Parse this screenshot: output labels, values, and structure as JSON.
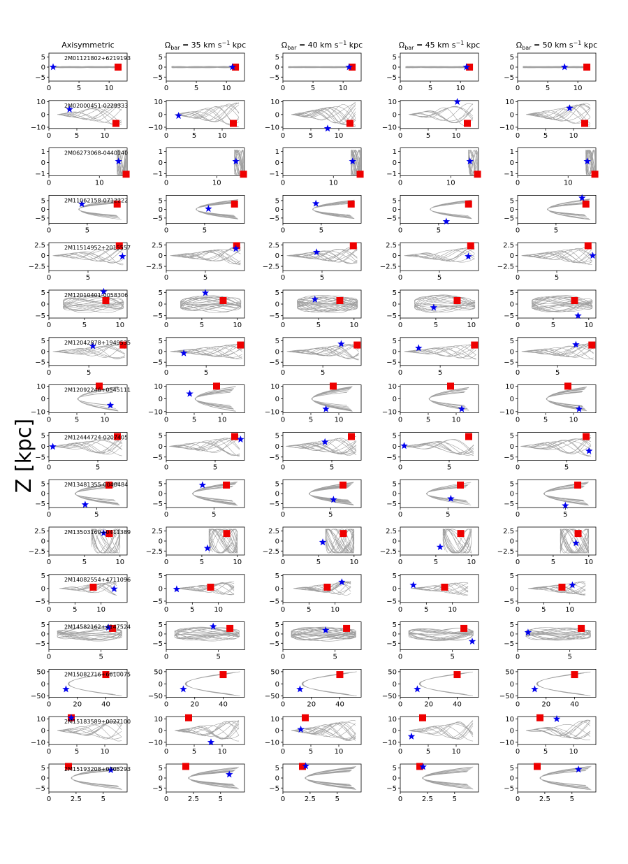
{
  "figure": {
    "ylabel": "Z [kpc]"
  },
  "chart_data": {
    "type": "line",
    "description_columns": [
      "Axisymmetric",
      "Ω_bar = 35 km s⁻¹ kpc",
      "Ω_bar = 40 km s⁻¹ kpc",
      "Ω_bar = 45 km s⁻¹ kpc",
      "Ω_bar = 50 km s⁻¹ kpc"
    ],
    "columns": [
      {
        "title": "Axisymmetric"
      },
      {
        "title_prefix": "Ω",
        "title_sub": "bar",
        "title_mid": " = 35 km s",
        "title_sup": "−1",
        "title_suffix": " kpc"
      },
      {
        "title_prefix": "Ω",
        "title_sub": "bar",
        "title_mid": " = 40 km s",
        "title_sup": "−1",
        "title_suffix": " kpc"
      },
      {
        "title_prefix": "Ω",
        "title_sub": "bar",
        "title_mid": " = 45 km s",
        "title_sup": "−1",
        "title_suffix": " kpc"
      },
      {
        "title_prefix": "Ω",
        "title_sub": "bar",
        "title_mid": " = 50 km s",
        "title_sup": "−1",
        "title_suffix": " kpc"
      }
    ],
    "xlabel": "",
    "ylabel": "Z [kpc]",
    "marker_legend": {
      "square": "red",
      "star": "blue"
    },
    "rows": [
      {
        "label": "2M01121802+6219193",
        "xlim": [
          0,
          13
        ],
        "ylim": [
          -7,
          7
        ],
        "xticks": [
          0,
          5,
          10
        ],
        "yticks": [
          5,
          0,
          -5
        ],
        "shape": "flat",
        "R": 0.9,
        "R2": 11,
        "zamp": 0.4,
        "square": [
          11.5,
          0
        ],
        "stars": [
          [
            0.7,
            0
          ],
          [
            11,
            0
          ],
          [
            11,
            0
          ],
          [
            11,
            0
          ],
          [
            7.8,
            0
          ]
        ]
      },
      {
        "label": "2M02000451-0229333",
        "xlim": [
          0,
          14
        ],
        "ylim": [
          -11,
          11
        ],
        "xticks": [
          0,
          5,
          10
        ],
        "yticks": [
          10,
          0,
          -10
        ],
        "shape": "fan",
        "R": 1.5,
        "R2": 13,
        "zamp": 10,
        "square": [
          12,
          -7
        ],
        "stars": [
          [
            3.7,
            4
          ],
          [
            2.2,
            -1
          ],
          [
            8,
            -11
          ],
          [
            10.2,
            10
          ],
          [
            9.3,
            5
          ]
        ]
      },
      {
        "label": "2M06273068-0440140",
        "xlim": [
          0,
          15.5
        ],
        "ylim": [
          -1.2,
          1.3
        ],
        "xticks": [
          0,
          10
        ],
        "yticks": [
          1,
          0,
          -1
        ],
        "shape": "box",
        "R": 13.5,
        "R2": 15.3,
        "zamp": 1.1,
        "square": [
          15.3,
          -1.05
        ],
        "stars": [
          [
            13.8,
            0.1
          ],
          [
            13.8,
            0.1
          ],
          [
            13.8,
            0.1
          ],
          [
            13.8,
            0.1
          ],
          [
            13.8,
            0.1
          ]
        ]
      },
      {
        "label": "2M11062158-0712222",
        "xlim": [
          0,
          10.2
        ],
        "ylim": [
          -8,
          8
        ],
        "xticks": [
          0,
          5
        ],
        "yticks": [
          5,
          0,
          -5
        ],
        "shape": "banana",
        "R": 3,
        "R2": 9.5,
        "zamp": 6,
        "square": [
          8.9,
          3
        ],
        "stars": [
          [
            4.3,
            3
          ],
          [
            5.5,
            0.3
          ],
          [
            4.3,
            3.3
          ],
          [
            6,
            -7
          ],
          [
            8.4,
            6.5
          ]
        ]
      },
      {
        "label": "2M11514952+2015557",
        "xlim": [
          0,
          10
        ],
        "ylim": [
          -3.5,
          3
        ],
        "xticks": [
          0,
          5
        ],
        "yticks": [
          2.5,
          0.0,
          -2.5
        ],
        "shape": "fan",
        "R": 0.5,
        "R2": 9.5,
        "zamp": 2.2,
        "square": [
          9,
          2.3
        ],
        "stars": [
          [
            9.4,
            -0.2
          ],
          [
            8.9,
            1.6
          ],
          [
            4.3,
            0.8
          ],
          [
            8.7,
            -0.2
          ],
          [
            9.6,
            0
          ]
        ]
      },
      {
        "label": "2M12010401-0058306",
        "xlim": [
          0,
          11
        ],
        "ylim": [
          -6,
          6
        ],
        "xticks": [
          0,
          5,
          10
        ],
        "yticks": [
          5,
          0,
          -5
        ],
        "shape": "loop",
        "R": 2,
        "R2": 10.5,
        "zamp": 5,
        "square": [
          8,
          1.5
        ],
        "stars": [
          [
            7.7,
            5.3
          ],
          [
            5.5,
            4.8
          ],
          [
            4.5,
            2
          ],
          [
            4.7,
            -1.5
          ],
          [
            8.5,
            -5
          ]
        ]
      },
      {
        "label": "2M12042878+1949535",
        "xlim": [
          0,
          9.8
        ],
        "ylim": [
          -6.5,
          6.5
        ],
        "xticks": [
          0,
          5
        ],
        "yticks": [
          5,
          0,
          -5
        ],
        "shape": "fan",
        "R": 0.5,
        "R2": 9.5,
        "zamp": 4,
        "square": [
          9.3,
          3
        ],
        "stars": [
          [
            5.5,
            2.5
          ],
          [
            2.2,
            -0.8
          ],
          [
            7.3,
            3.5
          ],
          [
            2.3,
            1.6
          ],
          [
            7.3,
            3.2
          ]
        ]
      },
      {
        "label": "2M12092246+0545111",
        "xlim": [
          0,
          14
        ],
        "ylim": [
          -11,
          11
        ],
        "xticks": [
          0,
          5,
          10
        ],
        "yticks": [
          10,
          0,
          -10
        ],
        "shape": "banana",
        "R": 4,
        "R2": 12.5,
        "zamp": 10,
        "square": [
          9,
          10
        ],
        "stars": [
          [
            11,
            -5
          ],
          [
            4.2,
            4
          ],
          [
            7.7,
            -8
          ],
          [
            11,
            -8
          ],
          [
            11,
            -8
          ]
        ]
      },
      {
        "label": "2M12444724-0207405",
        "xlim": [
          0,
          8
        ],
        "ylim": [
          -6.5,
          6.5
        ],
        "xticks": [
          0,
          5
        ],
        "yticks": [
          5,
          0,
          -5
        ],
        "shape": "fan",
        "R": 0.3,
        "R2": 7.5,
        "zamp": 5,
        "square": [
          7,
          4.5
        ],
        "stars": [
          [
            0.4,
            -0.2
          ],
          [
            7.6,
            3.2
          ],
          [
            4.3,
            2
          ],
          [
            0.4,
            0.2
          ],
          [
            7.3,
            -2.2
          ]
        ]
      },
      {
        "label": "2M13481355-0040484",
        "xlim": [
          0,
          8.2
        ],
        "ylim": [
          -7,
          7
        ],
        "xticks": [
          0,
          5
        ],
        "yticks": [
          5,
          0,
          -5
        ],
        "shape": "banana",
        "R": 2,
        "R2": 7.5,
        "zamp": 6,
        "square": [
          6.3,
          4.3
        ],
        "stars": [
          [
            3.8,
            -5.5
          ],
          [
            3.8,
            4.3
          ],
          [
            5.3,
            -3
          ],
          [
            5.3,
            -2.5
          ],
          [
            5,
            -6
          ]
        ]
      },
      {
        "label": "2M13503160+0411389",
        "xlim": [
          0,
          11
        ],
        "ylim": [
          -3.5,
          3.5
        ],
        "xticks": [
          0,
          5,
          10
        ],
        "yticks": [
          2.5,
          0.0,
          -2.5
        ],
        "shape": "box",
        "R": 6,
        "R2": 10,
        "zamp": 3,
        "square": [
          8.5,
          1.9
        ],
        "stars": [
          [
            7.7,
            2
          ],
          [
            5.8,
            -1.8
          ],
          [
            5.6,
            -0.3
          ],
          [
            5.6,
            -1.5
          ],
          [
            8.2,
            -0.5
          ]
        ]
      },
      {
        "label": "2M14082554+4711096",
        "xlim": [
          0,
          15
        ],
        "ylim": [
          -5.5,
          5.5
        ],
        "xticks": [
          0,
          5,
          10
        ],
        "yticks": [
          5,
          0,
          -5
        ],
        "shape": "fan",
        "R": 2,
        "R2": 13,
        "zamp": 3,
        "square": [
          8.5,
          0.5
        ],
        "stars": [
          [
            12.5,
            -0.2
          ],
          [
            2,
            -0.3
          ],
          [
            11.3,
            2.5
          ],
          [
            2.5,
            1.3
          ],
          [
            10.5,
            1.3
          ]
        ]
      },
      {
        "label": "2M14582162+4147524",
        "xlim": [
          0,
          7.5
        ],
        "ylim": [
          -8.5,
          6.5
        ],
        "xticks": [
          0,
          5
        ],
        "yticks": [
          5,
          0,
          -5
        ],
        "shape": "loop",
        "R": 0.8,
        "R2": 7,
        "zamp": 5,
        "square": [
          6.1,
          3
        ],
        "stars": [
          [
            5.7,
            3.5
          ],
          [
            4.5,
            4
          ],
          [
            4.1,
            2
          ],
          [
            6.9,
            -4
          ],
          [
            1,
            0.8
          ]
        ]
      },
      {
        "label": "2M15082716+6610075",
        "xlim": [
          0,
          55
        ],
        "ylim": [
          -55,
          60
        ],
        "xticks": [
          0,
          20,
          40
        ],
        "yticks": [
          50,
          0,
          -50
        ],
        "shape": "arc",
        "R": 10,
        "R2": 52,
        "zamp": 50,
        "square": [
          40,
          38
        ],
        "stars": [
          [
            12,
            -22
          ],
          [
            12,
            -22
          ],
          [
            12,
            -22
          ],
          [
            12,
            -22
          ],
          [
            12,
            -22
          ]
        ]
      },
      {
        "label": "2M15183589+0027100",
        "xlim": [
          0,
          14
        ],
        "ylim": [
          -12,
          12
        ],
        "xticks": [
          0,
          5,
          10
        ],
        "yticks": [
          10,
          0,
          -10
        ],
        "shape": "fan",
        "R": 1.5,
        "R2": 13,
        "zamp": 10,
        "square": [
          4,
          11
        ],
        "stars": [
          [
            4,
            11
          ],
          [
            8,
            -10
          ],
          [
            3.2,
            1
          ],
          [
            2,
            -5
          ],
          [
            7,
            10
          ]
        ]
      },
      {
        "label": "2M15193208+0705293",
        "xlim": [
          0,
          7.2
        ],
        "ylim": [
          -7,
          7
        ],
        "xticks": [
          0.0,
          2.5,
          5.0
        ],
        "yticks": [
          5,
          0,
          -5
        ],
        "shape": "banana",
        "R": 1.3,
        "R2": 6.8,
        "zamp": 6,
        "square": [
          1.8,
          5.8
        ],
        "stars": [
          [
            5.7,
            4
          ],
          [
            5.8,
            1.8
          ],
          [
            2.1,
            6
          ],
          [
            2.1,
            5.6
          ],
          [
            5.6,
            4.3
          ]
        ]
      }
    ],
    "tick_labels": {
      "0": "0",
      "5": "5",
      "10": "10",
      "20": "20",
      "40": "40",
      "50": "50",
      "-5": "−5",
      "-10": "−10",
      "-50": "−50",
      "1": "1",
      "-1": "−1",
      "2.5": "2.5",
      "-2.5": "−2.5",
      "0.0": "0.0",
      "5.0": "5.0"
    }
  }
}
